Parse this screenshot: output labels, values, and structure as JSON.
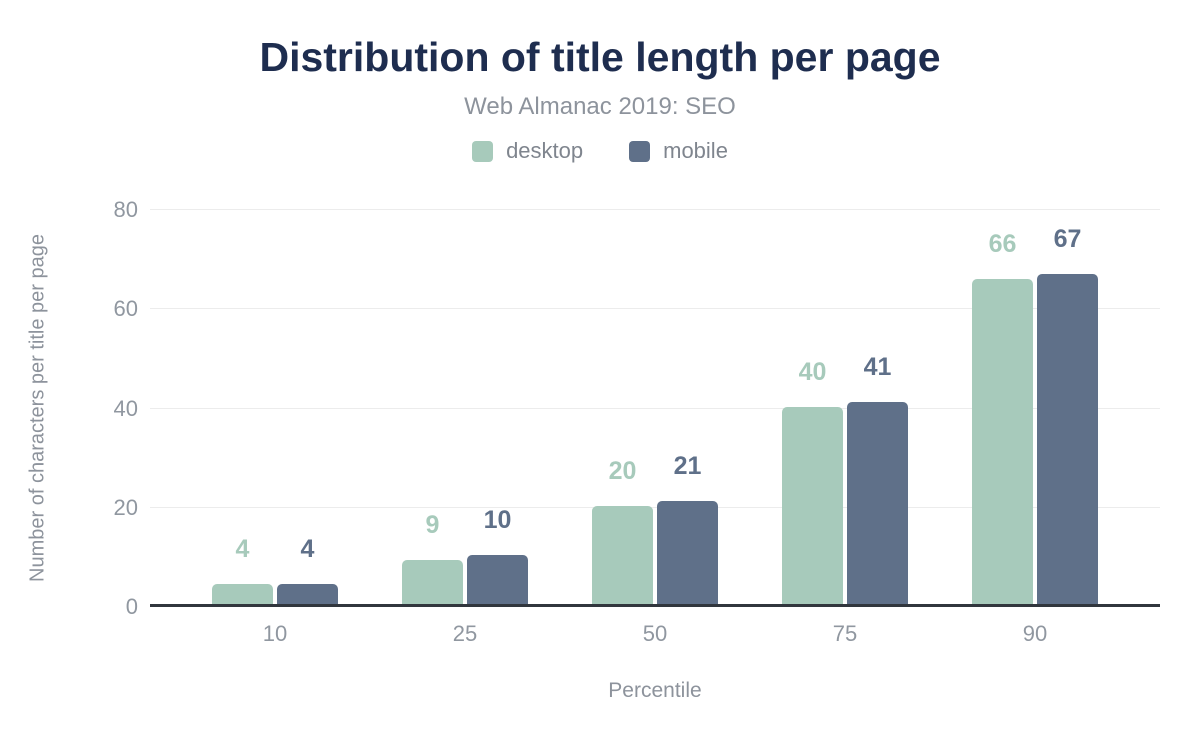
{
  "chart_data": {
    "type": "bar",
    "title": "Distribution of title length per page",
    "subtitle": "Web Almanac 2019: SEO",
    "xlabel": "Percentile",
    "ylabel": "Number of characters per title per page",
    "categories": [
      "10",
      "25",
      "50",
      "75",
      "90"
    ],
    "series": [
      {
        "name": "desktop",
        "color": "#a7cabb",
        "values": [
          4,
          9,
          20,
          40,
          66
        ]
      },
      {
        "name": "mobile",
        "color": "#5f7089",
        "values": [
          4,
          10,
          21,
          41,
          67
        ]
      }
    ],
    "ylim": [
      0,
      80
    ],
    "yticks": [
      0,
      20,
      40,
      60,
      80
    ],
    "grid": true,
    "legend_position": "top",
    "value_labels": true
  },
  "style_colors": {
    "background": "#ffffff",
    "title": "#1e2d4f",
    "subtitle": "#8d939c",
    "axis_text": "#9097a0",
    "legend_text": "#7f858e",
    "gridline": "#ececec",
    "baseline": "#31363d",
    "desktop_series": "#a7cabb",
    "mobile_series": "#5f7089"
  }
}
